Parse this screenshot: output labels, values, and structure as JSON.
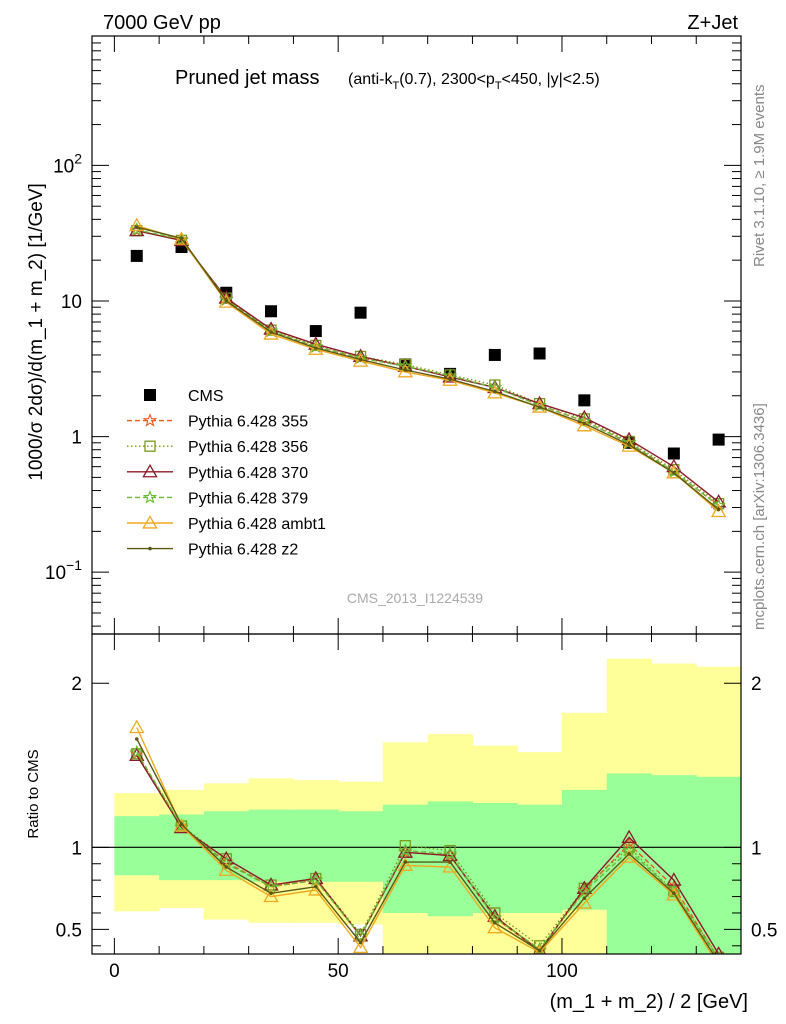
{
  "header": {
    "left": "7000 GeV pp",
    "right": "Z+Jet"
  },
  "side_labels": {
    "rivet": "Rivet 3.1.10, ≥ 1.9M events",
    "mcplots": "mcplots.cern.ch [arXiv:1306.3436]"
  },
  "chart_data": [
    {
      "type": "scatter",
      "title": "Pruned jet mass",
      "subtitle_parts": {
        "a": "(anti-k",
        "a_sub": "T",
        "b": "(0.7), 2300<p",
        "b_sub": "T",
        "c": "<450, |y|<2.5)"
      },
      "ylabel": "1000/σ 2dσ)/d(m_1 + m_2) [1/GeV]",
      "yscale": "log",
      "ylim": [
        0.035,
        900
      ],
      "xlim": [
        -5,
        140
      ],
      "ytick_labels": [
        "10^-1",
        "1",
        "10",
        "10^2"
      ],
      "watermark": "CMS_2013_I1224539",
      "legend_position": "middle-left",
      "x": [
        5,
        15,
        25,
        35,
        45,
        55,
        65,
        75,
        85,
        95,
        105,
        115,
        125,
        135
      ],
      "series": [
        {
          "name": "CMS",
          "color": "#000000",
          "marker": "square",
          "values": [
            21.5,
            25,
            11.5,
            8.4,
            6.0,
            8.2,
            3.4,
            2.9,
            4.0,
            4.1,
            1.85,
            0.9,
            0.75,
            0.95
          ]
        },
        {
          "name": "Pythia 6.428 355",
          "color": "#ee5a1c",
          "marker": "star",
          "dash": "5,3",
          "values": [
            33,
            28,
            10.3,
            6.0,
            4.6,
            3.8,
            3.3,
            2.8,
            2.3,
            1.7,
            1.3,
            0.9,
            0.55,
            0.31
          ]
        },
        {
          "name": "Pythia 6.428 356",
          "color": "#7a9a1a",
          "marker": "square-open",
          "dash": "1.5,2.5",
          "values": [
            33,
            28,
            10.5,
            6.1,
            4.7,
            3.9,
            3.4,
            2.85,
            2.4,
            1.75,
            1.35,
            0.92,
            0.57,
            0.32
          ]
        },
        {
          "name": "Pythia 6.428 370",
          "color": "#8b1a2a",
          "marker": "triangle-open",
          "dash": "",
          "values": [
            33,
            28,
            10.5,
            6.2,
            4.8,
            3.9,
            3.3,
            2.75,
            2.3,
            1.75,
            1.38,
            0.95,
            0.6,
            0.33
          ]
        },
        {
          "name": "Pythia 6.428 379",
          "color": "#66bb33",
          "marker": "star",
          "dash": "5,3",
          "values": [
            33.5,
            28.5,
            10.2,
            6.0,
            4.6,
            3.8,
            3.3,
            2.8,
            2.3,
            1.7,
            1.3,
            0.9,
            0.55,
            0.31
          ]
        },
        {
          "name": "Pythia 6.428 ambt1",
          "color": "#f0a81e",
          "marker": "triangle-open",
          "dash": "",
          "values": [
            36,
            28.5,
            9.8,
            5.7,
            4.4,
            3.6,
            3.0,
            2.6,
            2.1,
            1.65,
            1.2,
            0.85,
            0.54,
            0.28
          ]
        },
        {
          "name": "Pythia 6.428 z2",
          "color": "#5a5a14",
          "marker": "dot",
          "dash": "",
          "values": [
            35,
            29,
            10.0,
            5.9,
            4.5,
            3.7,
            3.1,
            2.65,
            2.15,
            1.65,
            1.25,
            0.87,
            0.54,
            0.29
          ]
        }
      ]
    },
    {
      "type": "line",
      "ylabel": "Ratio to CMS",
      "xlabel": "(m_1 + m_2) / 2 [GeV]",
      "ylim": [
        0.35,
        2.3
      ],
      "xlim": [
        -5,
        140
      ],
      "yticks": [
        0.5,
        1,
        2
      ],
      "ytick_labels": [
        "0.5",
        "1",
        "2"
      ],
      "xticks": [
        0,
        50,
        100
      ],
      "xtick_labels": [
        "0",
        "50",
        "100"
      ],
      "bins": [
        [
          0,
          10
        ],
        [
          10,
          20
        ],
        [
          20,
          30
        ],
        [
          30,
          40
        ],
        [
          40,
          50
        ],
        [
          50,
          60
        ],
        [
          60,
          70
        ],
        [
          70,
          80
        ],
        [
          80,
          90
        ],
        [
          90,
          100
        ],
        [
          100,
          110
        ],
        [
          110,
          120
        ],
        [
          120,
          130
        ],
        [
          130,
          140
        ]
      ],
      "band_inner": {
        "color": "#99ff99",
        "lo": [
          0.83,
          0.8,
          0.8,
          0.79,
          0.79,
          0.79,
          0.6,
          0.58,
          0.6,
          0.6,
          0.62,
          0.35,
          0.35,
          0.35
        ],
        "hi": [
          1.19,
          1.2,
          1.22,
          1.23,
          1.23,
          1.22,
          1.26,
          1.28,
          1.27,
          1.26,
          1.35,
          1.45,
          1.44,
          1.43
        ]
      },
      "band_outer": {
        "color": "#ffff99",
        "lo": [
          0.61,
          0.63,
          0.56,
          0.54,
          0.54,
          0.53,
          0.35,
          0.35,
          0.35,
          0.35,
          0.35,
          0.35,
          0.39,
          0.41
        ],
        "hi": [
          1.33,
          1.35,
          1.39,
          1.42,
          1.41,
          1.4,
          1.64,
          1.69,
          1.62,
          1.58,
          1.82,
          2.15,
          2.12,
          2.1
        ]
      },
      "series": [
        {
          "name": "Pythia 6.428 355",
          "values": [
            1.57,
            1.12,
            0.91,
            0.76,
            0.8,
            0.46,
            0.97,
            0.95,
            0.57,
            0.37,
            0.74,
            1.02,
            0.76,
            0.32
          ]
        },
        {
          "name": "Pythia 6.428 356",
          "values": [
            1.57,
            1.13,
            0.93,
            0.77,
            0.81,
            0.47,
            1.01,
            0.98,
            0.6,
            0.4,
            0.75,
            1.0,
            0.73,
            0.33
          ]
        },
        {
          "name": "Pythia 6.428 370",
          "values": [
            1.56,
            1.12,
            0.93,
            0.77,
            0.81,
            0.46,
            0.97,
            0.95,
            0.58,
            0.37,
            0.75,
            1.06,
            0.8,
            0.35
          ]
        },
        {
          "name": "Pythia 6.428 379",
          "values": [
            1.58,
            1.13,
            0.9,
            0.76,
            0.8,
            0.46,
            0.98,
            0.96,
            0.57,
            0.38,
            0.73,
            0.98,
            0.73,
            0.32
          ]
        },
        {
          "name": "Pythia 6.428 ambt1",
          "values": [
            1.73,
            1.13,
            0.86,
            0.7,
            0.74,
            0.39,
            0.89,
            0.88,
            0.51,
            0.36,
            0.66,
            0.94,
            0.71,
            0.28
          ]
        },
        {
          "name": "Pythia 6.428 z2",
          "values": [
            1.66,
            1.14,
            0.88,
            0.72,
            0.76,
            0.42,
            0.91,
            0.91,
            0.54,
            0.37,
            0.69,
            0.96,
            0.72,
            0.3
          ]
        }
      ]
    }
  ]
}
